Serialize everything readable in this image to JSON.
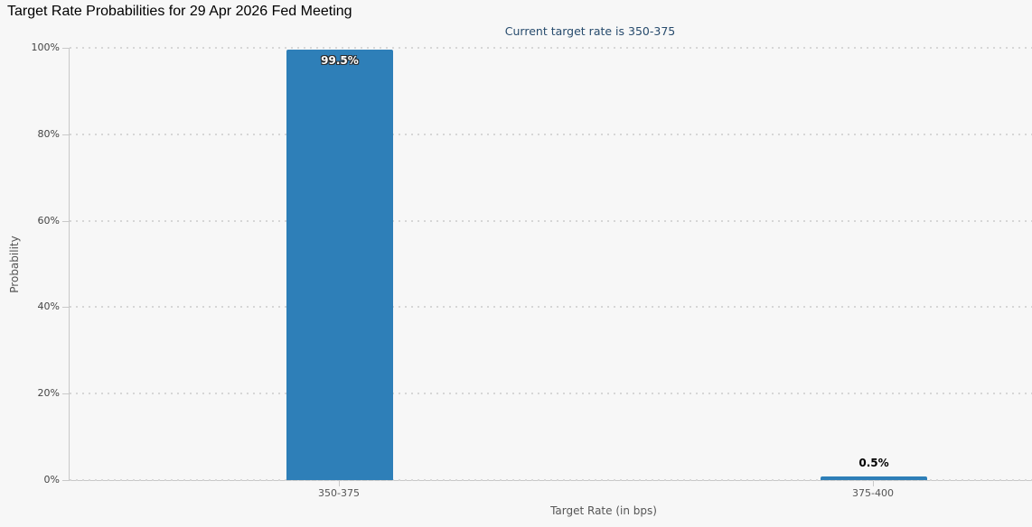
{
  "chart_data": {
    "type": "bar",
    "title": "Target Rate Probabilities for 29 Apr 2026 Fed Meeting",
    "subtitle": "Current target rate is 350-375",
    "categories": [
      "350-375",
      "375-400"
    ],
    "values": [
      99.5,
      0.5
    ],
    "value_labels": [
      "99.5%",
      "0.5%"
    ],
    "xlabel": "Target Rate (in bps)",
    "ylabel": "Probability",
    "ylim": [
      0,
      100
    ],
    "ytick_labels": [
      "0%",
      "20%",
      "40%",
      "60%",
      "80%",
      "100%"
    ],
    "grid": "horizontal-dotted",
    "legend": "none",
    "colors": {
      "bar": "#2e7fb8",
      "background": "#f7f7f7",
      "title_text": "#000000",
      "subtitle_text": "#274b6d",
      "grid_line": "#d6d6d6",
      "axis_line": "#c9c9c9",
      "tick_label_text": "#555555"
    }
  }
}
